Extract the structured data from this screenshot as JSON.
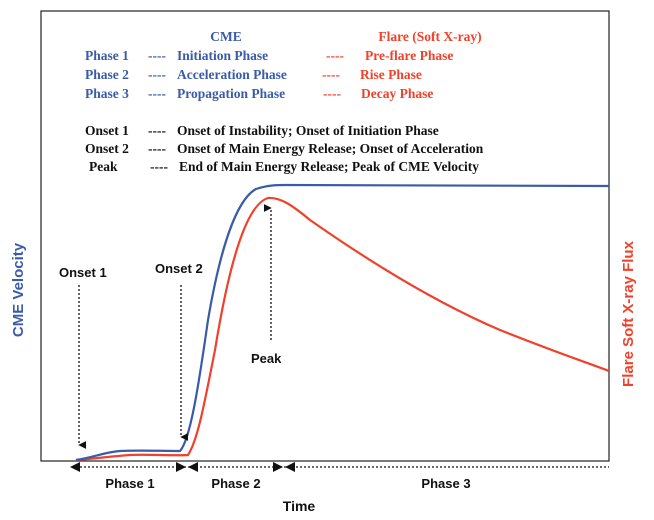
{
  "colors": {
    "cme": "#3a5ba8",
    "flare": "#f0412a",
    "text": "#111111"
  },
  "legend": {
    "cme_header": "CME",
    "flare_header": "Flare (Soft X-ray)",
    "phases": [
      {
        "phase": "Phase 1",
        "cme": "Initiation Phase",
        "flare": "Pre-flare Phase"
      },
      {
        "phase": "Phase 2",
        "cme": "Acceleration Phase",
        "flare": "Rise Phase"
      },
      {
        "phase": "Phase 3",
        "cme": "Propagation Phase",
        "flare": "Decay Phase"
      }
    ],
    "definitions": [
      {
        "term": "Onset 1",
        "text": "Onset of Instability; Onset of Initiation Phase"
      },
      {
        "term": "Onset 2",
        "text": "Onset of Main Energy Release; Onset of Acceleration"
      },
      {
        "term": "Peak",
        "text": "End of Main Energy Release; Peak of CME Velocity"
      }
    ],
    "separator": "----"
  },
  "axes": {
    "left_label": "CME Velocity",
    "right_label": "Flare Soft X-ray Flux",
    "bottom_label": "Time"
  },
  "markers": {
    "onset1": "Onset 1",
    "onset2": "Onset 2",
    "peak": "Peak"
  },
  "phase_labels": {
    "phase1": "Phase 1",
    "phase2": "Phase 2",
    "phase3": "Phase 3"
  }
}
